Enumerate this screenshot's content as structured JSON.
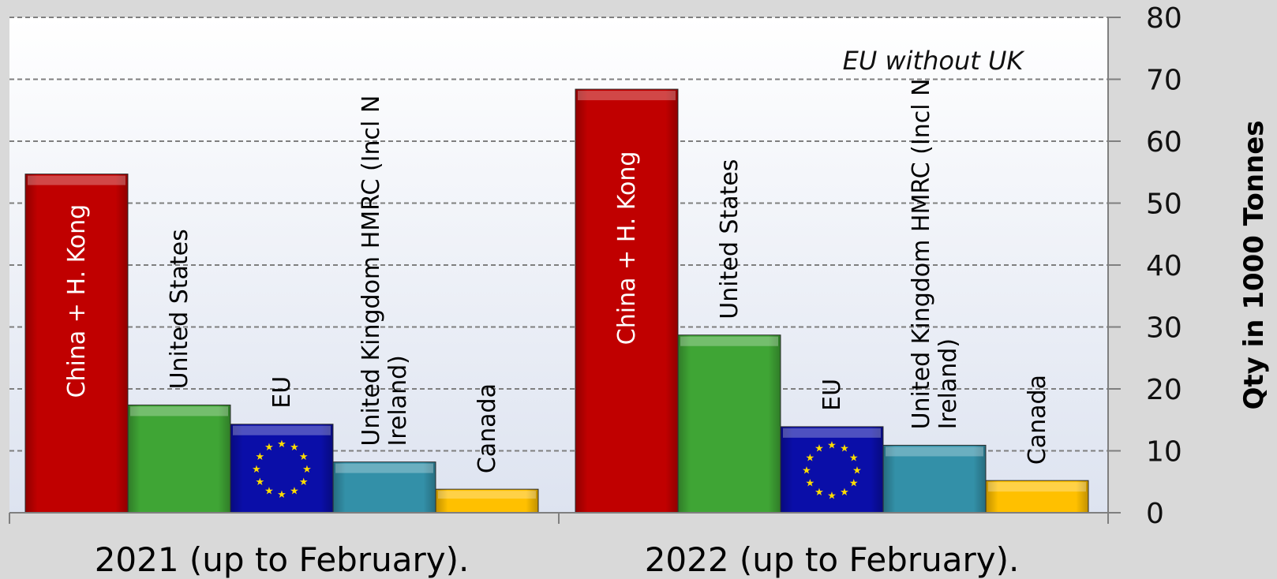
{
  "chart_data": {
    "type": "bar",
    "annotation": "EU without UK",
    "ylabel": "Qty in 1000 Tonnes",
    "ylim": [
      0,
      80
    ],
    "yticks": [
      "0",
      "10",
      "20",
      "30",
      "40",
      "50",
      "60",
      "70",
      "80"
    ],
    "grid": true,
    "groups": [
      {
        "label": "2021 (up to February).",
        "bars": [
          {
            "label": "China + H. Kong",
            "value": 54.7,
            "color": "#c00000"
          },
          {
            "label": "United States",
            "value": 17.4,
            "color": "#3fa535"
          },
          {
            "label": "EU",
            "value": 14.3,
            "color": "#0a0ea8"
          },
          {
            "label": "United Kingdom HMRC (Incl N Ireland)",
            "value": 8.2,
            "color": "#3390a8"
          },
          {
            "label": "Canada",
            "value": 3.8,
            "color": "#ffc000"
          }
        ]
      },
      {
        "label": "2022 (up to February).",
        "bars": [
          {
            "label": "China + H. Kong",
            "value": 68.4,
            "color": "#c00000"
          },
          {
            "label": "United States",
            "value": 28.7,
            "color": "#3fa535"
          },
          {
            "label": "EU",
            "value": 13.9,
            "color": "#0a0ea8"
          },
          {
            "label": "United Kingdom HMRC (Incl N Ireland)",
            "value": 10.9,
            "color": "#3390a8"
          },
          {
            "label": "Canada",
            "value": 5.2,
            "color": "#ffc000"
          }
        ]
      }
    ]
  }
}
